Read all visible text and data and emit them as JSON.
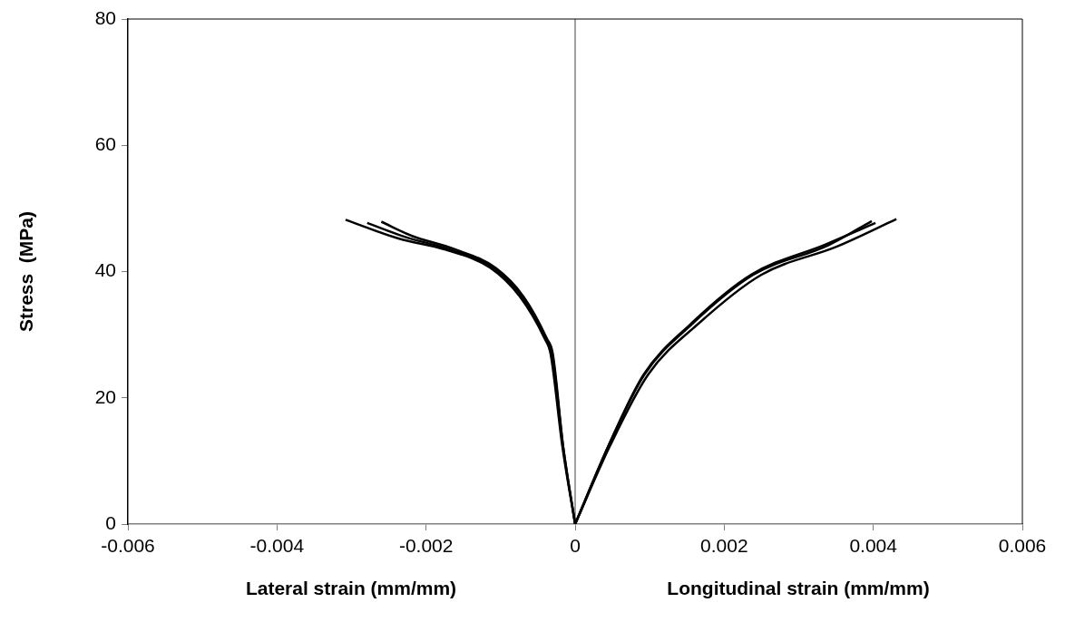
{
  "chart_data": {
    "type": "line",
    "xlabel": "Lateral strain (mm/mm)",
    "ylabel": "Stress  (MPa)",
    "annotations": [
      "Longitudinal strain (mm/mm)"
    ],
    "xlim": [
      -0.006,
      0.006
    ],
    "xticks": [
      -0.006,
      -0.004,
      -0.002,
      0,
      0.002,
      0.004,
      0.006
    ],
    "ylim": [
      0,
      80
    ],
    "yticks": [
      0,
      20,
      40,
      60,
      80
    ],
    "grid": false,
    "legend": false,
    "marker": "none",
    "line_style": "solid",
    "ref_lines": [
      {
        "axis": "x",
        "value": 0,
        "color": "#808080"
      }
    ],
    "series": [
      {
        "color": "#000000",
        "x": [
          0,
          -0.00017,
          -0.00033,
          -0.00041,
          -0.00074,
          -0.00114,
          -0.00175,
          -0.00236,
          -0.00308
        ],
        "values": [
          0,
          12.2,
          27,
          29.4,
          36,
          40.6,
          43.5,
          45.2,
          48.2
        ]
      },
      {
        "color": "#000000",
        "x": [
          0,
          -0.00016,
          -0.00031,
          -0.00039,
          -0.00071,
          -0.0011,
          -0.00168,
          -0.00226,
          -0.00279
        ],
        "values": [
          0,
          12.2,
          27,
          29.4,
          36,
          40.6,
          43.5,
          45.4,
          47.7
        ]
      },
      {
        "color": "#000000",
        "x": [
          0,
          -0.00016,
          -0.0003,
          -0.00038,
          -0.00069,
          -0.00107,
          -0.00163,
          -0.00218,
          -0.0026
        ],
        "values": [
          0,
          12.2,
          27,
          29.4,
          36,
          40.6,
          43.6,
          45.6,
          47.9
        ]
      },
      {
        "color": "#000000",
        "x": [
          0,
          0.00044,
          0.00093,
          0.00157,
          0.00239,
          0.0034,
          0.00398
        ],
        "values": [
          0,
          12.2,
          23.7,
          31.7,
          39.5,
          44.2,
          48.0
        ]
      },
      {
        "color": "#000000",
        "x": [
          0,
          0.00044,
          0.00092,
          0.00155,
          0.00236,
          0.00336,
          0.00403
        ],
        "values": [
          0,
          12.2,
          23.7,
          31.7,
          39.5,
          44.3,
          47.7
        ]
      },
      {
        "color": "#000000",
        "x": [
          0,
          0.00046,
          0.00098,
          0.00165,
          0.0025,
          0.00352,
          0.00431
        ],
        "values": [
          0,
          12.2,
          23.7,
          31.7,
          39.5,
          44.0,
          48.3
        ]
      }
    ]
  }
}
